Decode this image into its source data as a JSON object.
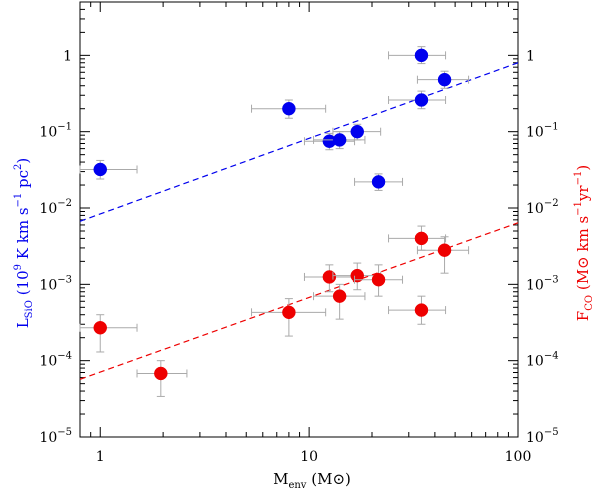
{
  "chart_data": {
    "type": "scatter",
    "title": "",
    "xlabel": {
      "main": "M",
      "sub": "env",
      "unit": " (M",
      "sun": "⊙",
      "close": ")"
    },
    "ylabel_left": {
      "main": "L",
      "sub": "SiO",
      "rest": " (10",
      "exp": "9",
      "rest2": " K km s",
      "exp2": "−1",
      "rest3": " pc",
      "exp3": "2",
      "close": ")"
    },
    "ylabel_right": {
      "main": "F",
      "sub": "CO",
      "rest": " (M",
      "sun": "⊙",
      "rest2": " km s",
      "exp2": "−1",
      "rest3": "yr",
      "exp3": "−1",
      "close": ")"
    },
    "xscale": "log",
    "yscale": "log",
    "xlim": [
      0.8,
      100
    ],
    "ylim": [
      1e-05,
      5
    ],
    "x_ticks": [
      {
        "value": 1,
        "label": "1"
      },
      {
        "value": 10,
        "label": "10"
      },
      {
        "value": 100,
        "label": "100"
      }
    ],
    "y_ticks": [
      {
        "value": 1,
        "base": "1",
        "exp": ""
      },
      {
        "value": 0.1,
        "base": "10",
        "exp": "−1"
      },
      {
        "value": 0.01,
        "base": "10",
        "exp": "−2"
      },
      {
        "value": 0.001,
        "base": "10",
        "exp": "−3"
      },
      {
        "value": 0.0001,
        "base": "10",
        "exp": "−4"
      },
      {
        "value": 1e-05,
        "base": "10",
        "exp": "−5"
      }
    ],
    "colors": {
      "sio": "#0000ee",
      "co": "#ee0000",
      "errorbar": "#aaaaaa",
      "axis": "#000000"
    },
    "series": [
      {
        "key": "sio",
        "points": [
          {
            "x": 1.0,
            "y": 0.032,
            "xerr": [
              0.8,
              1.5
            ],
            "yerr": [
              0.024,
              0.042
            ]
          },
          {
            "x": 8.0,
            "y": 0.2,
            "xerr": [
              5.3,
              12
            ],
            "yerr": [
              0.15,
              0.26
            ]
          },
          {
            "x": 12.5,
            "y": 0.075,
            "xerr": [
              9.5,
              16.5
            ],
            "yerr": [
              0.058,
              0.095
            ]
          },
          {
            "x": 14.0,
            "y": 0.078,
            "xerr": [
              10.5,
              18.5
            ],
            "yerr": [
              0.06,
              0.1
            ]
          },
          {
            "x": 17.0,
            "y": 0.1,
            "xerr": [
              13,
              22
            ],
            "yerr": [
              0.078,
              0.125
            ]
          },
          {
            "x": 21.5,
            "y": 0.022,
            "xerr": [
              16.5,
              28
            ],
            "yerr": [
              0.017,
              0.028
            ]
          },
          {
            "x": 34.5,
            "y": 1.0,
            "xerr": [
              24,
              45
            ],
            "yerr": [
              0.78,
              1.3
            ]
          },
          {
            "x": 34.5,
            "y": 0.26,
            "xerr": [
              24,
              45
            ],
            "yerr": [
              0.2,
              0.34
            ]
          },
          {
            "x": 44.5,
            "y": 0.48,
            "xerr": [
              33,
              58
            ],
            "yerr": [
              0.37,
              0.62
            ]
          }
        ],
        "fit": {
          "x": [
            0.8,
            100
          ],
          "y": [
            0.0067,
            0.8
          ]
        }
      },
      {
        "key": "co",
        "points": [
          {
            "x": 1.0,
            "y": 0.00027,
            "xerr": [
              0.8,
              1.5
            ],
            "yerr": [
              0.00013,
              0.0004
            ]
          },
          {
            "x": 1.95,
            "y": 6.8e-05,
            "xerr": [
              1.5,
              2.6
            ],
            "yerr": [
              3.4e-05,
              0.0001
            ]
          },
          {
            "x": 8.0,
            "y": 0.00043,
            "xerr": [
              5.3,
              12
            ],
            "yerr": [
              0.00021,
              0.00065
            ]
          },
          {
            "x": 12.5,
            "y": 0.00125,
            "xerr": [
              9.5,
              16.5
            ],
            "yerr": [
              0.0008,
              0.0018
            ]
          },
          {
            "x": 14.0,
            "y": 0.0007,
            "xerr": [
              10.5,
              18.5
            ],
            "yerr": [
              0.00035,
              0.001
            ]
          },
          {
            "x": 17.0,
            "y": 0.0013,
            "xerr": [
              13,
              22
            ],
            "yerr": [
              0.00085,
              0.0019
            ]
          },
          {
            "x": 21.5,
            "y": 0.00115,
            "xerr": [
              16.5,
              28
            ],
            "yerr": [
              0.0007,
              0.0018
            ]
          },
          {
            "x": 34.5,
            "y": 0.004,
            "xerr": [
              24,
              45
            ],
            "yerr": [
              0.0028,
              0.0058
            ]
          },
          {
            "x": 34.5,
            "y": 0.00046,
            "xerr": [
              24,
              45
            ],
            "yerr": [
              0.0003,
              0.0007
            ]
          },
          {
            "x": 44.5,
            "y": 0.0028,
            "xerr": [
              33,
              58
            ],
            "yerr": [
              0.0014,
              0.0042
            ]
          }
        ],
        "fit": {
          "x": [
            0.8,
            100
          ],
          "y": [
            5.7e-05,
            0.0064
          ]
        }
      }
    ],
    "grid": false,
    "legend": "none"
  }
}
